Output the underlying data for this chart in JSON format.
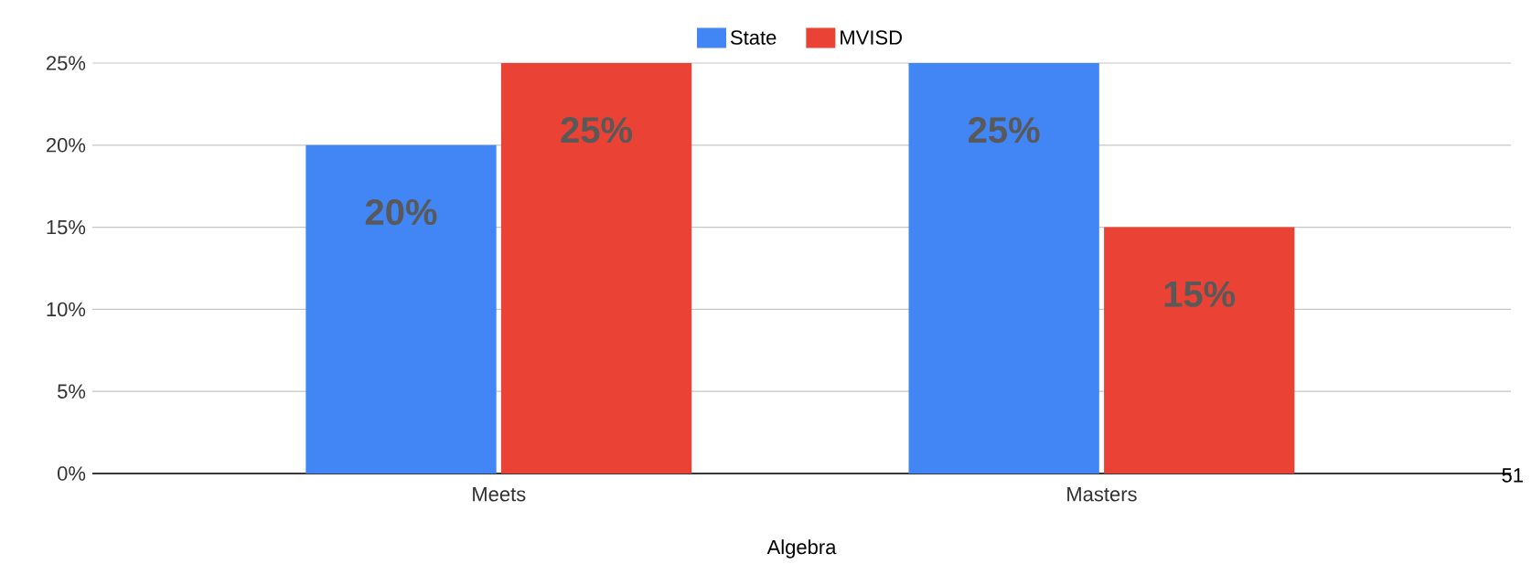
{
  "chart_data": {
    "type": "bar",
    "xlabel": "Algebra",
    "categories": [
      "Meets",
      "Masters"
    ],
    "series": [
      {
        "name": "State",
        "color": "#4285f4",
        "values": [
          20,
          25
        ],
        "value_labels": [
          "20%",
          "25%"
        ]
      },
      {
        "name": "MVISD",
        "color": "#ea4335",
        "values": [
          25,
          15
        ],
        "value_labels": [
          "25%",
          "15%"
        ]
      }
    ],
    "ylim": [
      0,
      25
    ],
    "yticks": [
      {
        "value": 0,
        "label": "0%"
      },
      {
        "value": 5,
        "label": "5%"
      },
      {
        "value": 10,
        "label": "10%"
      },
      {
        "value": 15,
        "label": "15%"
      },
      {
        "value": 20,
        "label": "20%"
      },
      {
        "value": 25,
        "label": "25%"
      }
    ],
    "grid": "y",
    "legend": "top",
    "annotations": [
      "51"
    ]
  }
}
